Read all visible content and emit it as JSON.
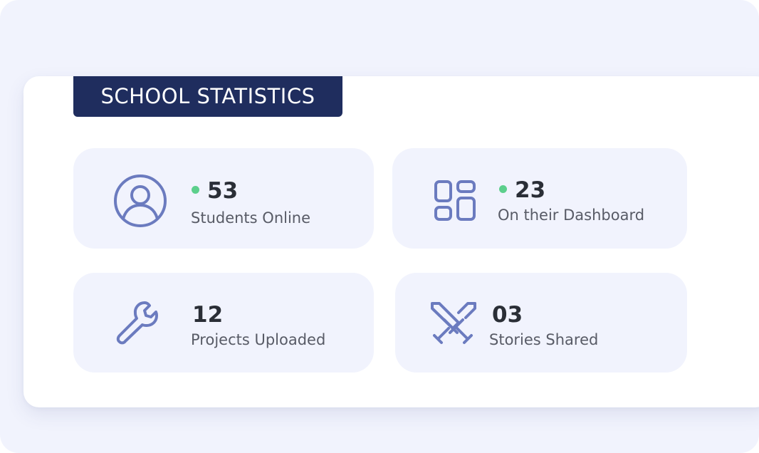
{
  "title": "SCHOOL STATISTICS",
  "colors": {
    "accent": "#6b7bbf",
    "title_bg": "#1f2d5e",
    "card_bg": "#f1f3fd",
    "online_dot": "#5ccf8c"
  },
  "stats": [
    {
      "icon": "user-circle-icon",
      "value": "53",
      "label": "Students Online",
      "status": "online"
    },
    {
      "icon": "dashboard-grid-icon",
      "value": "23",
      "label": "On their Dashboard",
      "status": "online"
    },
    {
      "icon": "wrench-icon",
      "value": "12",
      "label": "Projects Uploaded"
    },
    {
      "icon": "crossed-swords-icon",
      "value": "03",
      "label": "Stories Shared"
    }
  ]
}
